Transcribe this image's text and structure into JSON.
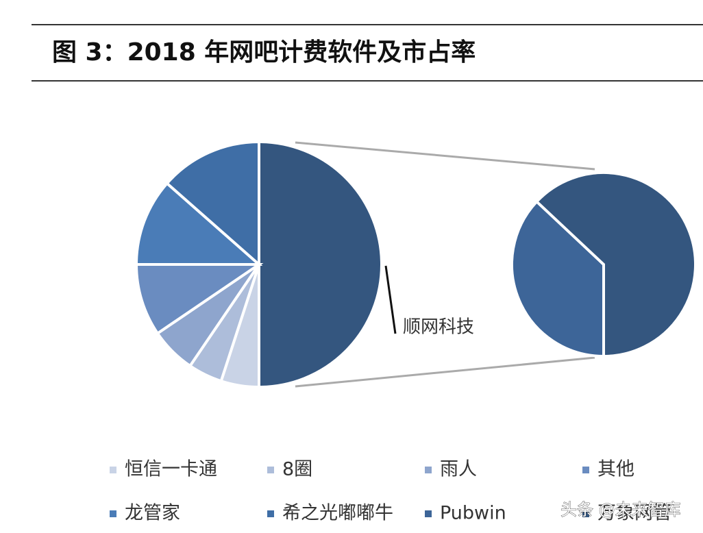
{
  "chart_data": {
    "type": "pie-of-pie",
    "title": "图 3：2018 年网吧计费软件及市占率",
    "slices": [
      {
        "name": "恒信一卡通",
        "color": "#c9d3e6",
        "value": 5
      },
      {
        "name": "8圈",
        "color": "#adbdda",
        "value": 4.5
      },
      {
        "name": "雨人",
        "color": "#8ea5cd",
        "value": 6
      },
      {
        "name": "其他",
        "color": "#6a8cc0",
        "value": 9.5
      },
      {
        "name": "龙管家",
        "color": "#4a7cb7",
        "value": 11.5
      },
      {
        "name": "希之光嘟嘟牛",
        "color": "#3f6ea6",
        "value": 13.5
      },
      {
        "name": "Pubwin",
        "color": "#3d6598",
        "value": 18.5,
        "group": true
      },
      {
        "name": "万象网管",
        "color": "#34567f",
        "value": 31.5,
        "group": true
      }
    ],
    "group_label": "顺网科技",
    "watermark": "头条 @未来智库"
  }
}
